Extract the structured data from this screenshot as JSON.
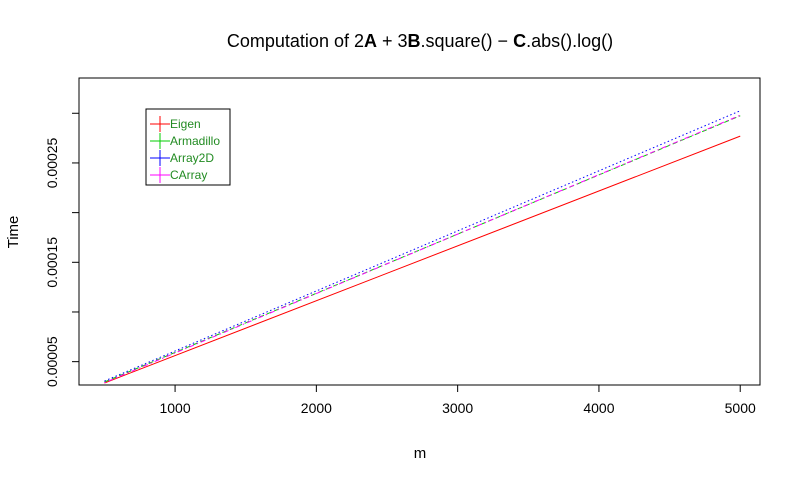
{
  "chart_data": {
    "type": "line",
    "title": {
      "prefix": "Computation of 2",
      "A": "A",
      "plus": " + 3",
      "B": "B",
      "square": ".square()",
      "minus": " − ",
      "C": "C",
      "suffix": ".abs().log()"
    },
    "xlabel": "m",
    "ylabel": "Time",
    "xlim": [
      500,
      5000
    ],
    "ylim": [
      2.65e-05,
      0.0003355
    ],
    "x_ticks": [
      1000,
      2000,
      3000,
      4000,
      5000
    ],
    "x_tick_labels": [
      "1000",
      "2000",
      "3000",
      "4000",
      "5000"
    ],
    "y_ticks": [
      5e-05,
      0.0001,
      0.00015,
      0.0002,
      0.00025,
      0.0003
    ],
    "y_tick_labels": [
      "0.00005",
      "",
      "0.00015",
      "",
      "0.00025",
      ""
    ],
    "x": [
      500,
      5000
    ],
    "series": [
      {
        "name": "Eigen",
        "values": [
          2.85e-05,
          0.000277
        ],
        "color": "#ff0000",
        "dash": "solid"
      },
      {
        "name": "Armadillo",
        "values": [
          2.95e-05,
          0.0002975
        ],
        "color": "#00cd00",
        "dash": "dashed"
      },
      {
        "name": "Array2D",
        "values": [
          3.05e-05,
          0.0003025
        ],
        "color": "#0000ff",
        "dash": "dotted"
      },
      {
        "name": "CArray",
        "values": [
          2.88e-05,
          0.000298
        ],
        "color": "#ff00ff",
        "dash": "dotdash"
      }
    ],
    "legend": {
      "position": "top-left",
      "text_color": "#228b22"
    },
    "grid": false
  }
}
